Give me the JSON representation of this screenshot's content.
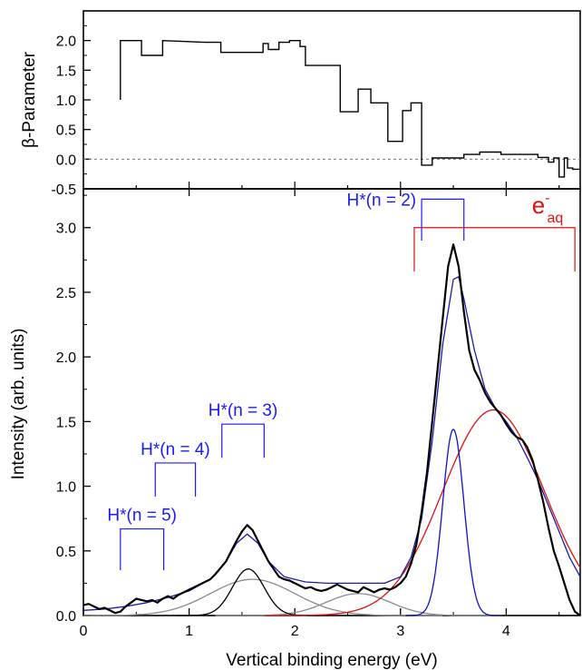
{
  "chart_data": [
    {
      "type": "line",
      "panel": "top",
      "ylabel": "β-Parameter",
      "xlim": [
        0,
        4.7
      ],
      "ylim": [
        -0.5,
        2.5
      ],
      "yticks": [
        "2.0",
        "1.5",
        "1.0",
        "0.5",
        "0.0",
        "-0.5"
      ],
      "reference_line": {
        "y": 0,
        "style": "dashed"
      },
      "series": [
        {
          "style": "step",
          "color": "#000000",
          "points": [
            [
              0.35,
              1.0
            ],
            [
              0.35,
              2.0
            ],
            [
              0.55,
              2.0
            ],
            [
              0.55,
              1.75
            ],
            [
              0.75,
              1.75
            ],
            [
              0.75,
              2.0
            ],
            [
              1.15,
              1.97
            ],
            [
              1.3,
              1.97
            ],
            [
              1.3,
              1.8
            ],
            [
              1.7,
              1.8
            ],
            [
              1.7,
              1.95
            ],
            [
              1.75,
              1.95
            ],
            [
              1.75,
              1.85
            ],
            [
              1.85,
              1.85
            ],
            [
              1.85,
              1.97
            ],
            [
              1.95,
              1.97
            ],
            [
              1.95,
              2.0
            ],
            [
              2.05,
              2.0
            ],
            [
              2.05,
              1.9
            ],
            [
              2.1,
              1.9
            ],
            [
              2.1,
              1.58
            ],
            [
              2.43,
              1.58
            ],
            [
              2.43,
              0.8
            ],
            [
              2.6,
              0.8
            ],
            [
              2.6,
              1.18
            ],
            [
              2.72,
              1.18
            ],
            [
              2.72,
              0.95
            ],
            [
              2.88,
              0.95
            ],
            [
              2.88,
              0.3
            ],
            [
              3.02,
              0.3
            ],
            [
              3.02,
              0.82
            ],
            [
              3.1,
              0.82
            ],
            [
              3.1,
              0.95
            ],
            [
              3.2,
              0.95
            ],
            [
              3.2,
              -0.1
            ],
            [
              3.3,
              -0.1
            ],
            [
              3.3,
              0.02
            ],
            [
              3.6,
              0.02
            ],
            [
              3.6,
              0.08
            ],
            [
              3.75,
              0.08
            ],
            [
              3.75,
              0.12
            ],
            [
              3.95,
              0.12
            ],
            [
              3.95,
              0.08
            ],
            [
              4.3,
              0.08
            ],
            [
              4.3,
              0.03
            ],
            [
              4.4,
              0.03
            ],
            [
              4.4,
              -0.05
            ],
            [
              4.45,
              -0.05
            ],
            [
              4.45,
              0.02
            ],
            [
              4.5,
              0.02
            ],
            [
              4.5,
              -0.3
            ],
            [
              4.55,
              -0.3
            ],
            [
              4.55,
              0.02
            ],
            [
              4.58,
              0.02
            ],
            [
              4.58,
              -0.15
            ],
            [
              4.63,
              -0.15
            ],
            [
              4.63,
              -0.17
            ],
            [
              4.7,
              -0.17
            ]
          ]
        }
      ]
    },
    {
      "type": "line",
      "panel": "bottom",
      "xlabel": "Vertical binding energy (eV)",
      "ylabel": "Intensity (arb. units)",
      "xlim": [
        0,
        4.7
      ],
      "ylim": [
        0,
        3.3
      ],
      "xticks": [
        "0",
        "1",
        "2",
        "3",
        "4"
      ],
      "yticks": [
        "0.0",
        "0.5",
        "1.0",
        "1.5",
        "2.0",
        "2.5",
        "3.0"
      ],
      "series": [
        {
          "style": "spectrum",
          "color": "#000000",
          "points": [
            [
              0.0,
              0.08
            ],
            [
              0.05,
              0.09
            ],
            [
              0.1,
              0.07
            ],
            [
              0.15,
              0.05
            ],
            [
              0.2,
              0.06
            ],
            [
              0.25,
              0.04
            ],
            [
              0.3,
              0.02
            ],
            [
              0.35,
              0.03
            ],
            [
              0.4,
              0.07
            ],
            [
              0.45,
              0.1
            ],
            [
              0.5,
              0.13
            ],
            [
              0.55,
              0.12
            ],
            [
              0.6,
              0.11
            ],
            [
              0.65,
              0.12
            ],
            [
              0.7,
              0.1
            ],
            [
              0.75,
              0.13
            ],
            [
              0.8,
              0.15
            ],
            [
              0.85,
              0.13
            ],
            [
              0.9,
              0.16
            ],
            [
              0.95,
              0.18
            ],
            [
              1.0,
              0.2
            ],
            [
              1.05,
              0.22
            ],
            [
              1.1,
              0.24
            ],
            [
              1.15,
              0.26
            ],
            [
              1.2,
              0.28
            ],
            [
              1.25,
              0.32
            ],
            [
              1.3,
              0.37
            ],
            [
              1.35,
              0.42
            ],
            [
              1.4,
              0.5
            ],
            [
              1.45,
              0.58
            ],
            [
              1.5,
              0.65
            ],
            [
              1.55,
              0.7
            ],
            [
              1.6,
              0.66
            ],
            [
              1.65,
              0.58
            ],
            [
              1.7,
              0.5
            ],
            [
              1.75,
              0.42
            ],
            [
              1.8,
              0.36
            ],
            [
              1.85,
              0.3
            ],
            [
              1.9,
              0.28
            ],
            [
              1.95,
              0.27
            ],
            [
              2.0,
              0.25
            ],
            [
              2.05,
              0.23
            ],
            [
              2.1,
              0.21
            ],
            [
              2.15,
              0.22
            ],
            [
              2.2,
              0.2
            ],
            [
              2.25,
              0.19
            ],
            [
              2.3,
              0.2
            ],
            [
              2.35,
              0.22
            ],
            [
              2.4,
              0.24
            ],
            [
              2.45,
              0.22
            ],
            [
              2.5,
              0.2
            ],
            [
              2.55,
              0.19
            ],
            [
              2.6,
              0.18
            ],
            [
              2.65,
              0.22
            ],
            [
              2.7,
              0.2
            ],
            [
              2.75,
              0.18
            ],
            [
              2.8,
              0.2
            ],
            [
              2.85,
              0.21
            ],
            [
              2.9,
              0.2
            ],
            [
              2.95,
              0.22
            ],
            [
              3.0,
              0.25
            ],
            [
              3.05,
              0.3
            ],
            [
              3.1,
              0.4
            ],
            [
              3.15,
              0.55
            ],
            [
              3.2,
              0.8
            ],
            [
              3.25,
              1.1
            ],
            [
              3.3,
              1.5
            ],
            [
              3.35,
              1.9
            ],
            [
              3.4,
              2.3
            ],
            [
              3.45,
              2.7
            ],
            [
              3.5,
              2.87
            ],
            [
              3.55,
              2.7
            ],
            [
              3.6,
              2.35
            ],
            [
              3.65,
              2.05
            ],
            [
              3.7,
              1.9
            ],
            [
              3.75,
              1.82
            ],
            [
              3.8,
              1.72
            ],
            [
              3.85,
              1.65
            ],
            [
              3.9,
              1.6
            ],
            [
              3.95,
              1.55
            ],
            [
              4.0,
              1.48
            ],
            [
              4.05,
              1.42
            ],
            [
              4.1,
              1.38
            ],
            [
              4.15,
              1.36
            ],
            [
              4.2,
              1.3
            ],
            [
              4.25,
              1.2
            ],
            [
              4.3,
              1.05
            ],
            [
              4.35,
              0.88
            ],
            [
              4.4,
              0.68
            ],
            [
              4.45,
              0.5
            ],
            [
              4.5,
              0.38
            ],
            [
              4.55,
              0.25
            ],
            [
              4.6,
              0.12
            ],
            [
              4.65,
              0.03
            ],
            [
              4.7,
              0.0
            ]
          ]
        },
        {
          "style": "fit",
          "color": "#1a1aa8",
          "points": [
            [
              0.0,
              0.04
            ],
            [
              0.2,
              0.05
            ],
            [
              0.4,
              0.07
            ],
            [
              0.6,
              0.1
            ],
            [
              0.8,
              0.14
            ],
            [
              1.0,
              0.19
            ],
            [
              1.2,
              0.28
            ],
            [
              1.35,
              0.42
            ],
            [
              1.45,
              0.56
            ],
            [
              1.55,
              0.63
            ],
            [
              1.65,
              0.56
            ],
            [
              1.75,
              0.42
            ],
            [
              1.9,
              0.3
            ],
            [
              2.1,
              0.26
            ],
            [
              2.3,
              0.25
            ],
            [
              2.5,
              0.25
            ],
            [
              2.7,
              0.25
            ],
            [
              2.85,
              0.25
            ],
            [
              3.0,
              0.3
            ],
            [
              3.1,
              0.45
            ],
            [
              3.2,
              0.75
            ],
            [
              3.3,
              1.35
            ],
            [
              3.4,
              2.1
            ],
            [
              3.5,
              2.6
            ],
            [
              3.55,
              2.62
            ],
            [
              3.6,
              2.45
            ],
            [
              3.7,
              2.05
            ],
            [
              3.8,
              1.75
            ],
            [
              3.9,
              1.6
            ],
            [
              4.0,
              1.5
            ],
            [
              4.1,
              1.38
            ],
            [
              4.2,
              1.22
            ],
            [
              4.3,
              1.05
            ],
            [
              4.4,
              0.85
            ],
            [
              4.5,
              0.65
            ],
            [
              4.6,
              0.45
            ],
            [
              4.7,
              0.3
            ]
          ]
        },
        {
          "style": "component",
          "color": "#000000",
          "shape": "gaussian",
          "center": 1.56,
          "amplitude": 0.36,
          "sigma": 0.15
        },
        {
          "style": "component",
          "color": "#8a8a8a",
          "shape": "gaussian",
          "center": 1.6,
          "amplitude": 0.28,
          "sigma": 0.4
        },
        {
          "style": "component",
          "color": "#8a8a8a",
          "shape": "gaussian",
          "center": 2.6,
          "amplitude": 0.17,
          "sigma": 0.3
        },
        {
          "style": "component",
          "color": "#1010c8",
          "shape": "gaussian",
          "center": 3.5,
          "amplitude": 1.44,
          "sigma": 0.1
        },
        {
          "style": "component",
          "color": "#e01010",
          "shape": "gaussian",
          "center": 3.88,
          "amplitude": 1.59,
          "sigma": 0.48
        }
      ],
      "annotations": [
        {
          "label": "H*(n = 5)",
          "color": "#1a1aff",
          "x_range": [
            0.35,
            0.76
          ],
          "y": 0.67,
          "y_low": 0.35
        },
        {
          "label": "H*(n = 4)",
          "color": "#1a1aff",
          "x_range": [
            0.68,
            1.06
          ],
          "y": 1.18,
          "y_low": 0.92
        },
        {
          "label": "H*(n = 3)",
          "color": "#1a1aff",
          "x_range": [
            1.31,
            1.71
          ],
          "y": 1.48,
          "y_low": 1.22
        },
        {
          "label": "H*(n = 2)",
          "color": "#1a1aff",
          "x_range": [
            3.2,
            3.6
          ],
          "y": 3.22,
          "y_low": 2.9
        },
        {
          "label": "e",
          "superscript": "-",
          "subscript": "aq",
          "color": "#e01010",
          "x_range": [
            3.13,
            4.65
          ],
          "y": 3.0,
          "y_low": 2.66
        }
      ]
    }
  ]
}
